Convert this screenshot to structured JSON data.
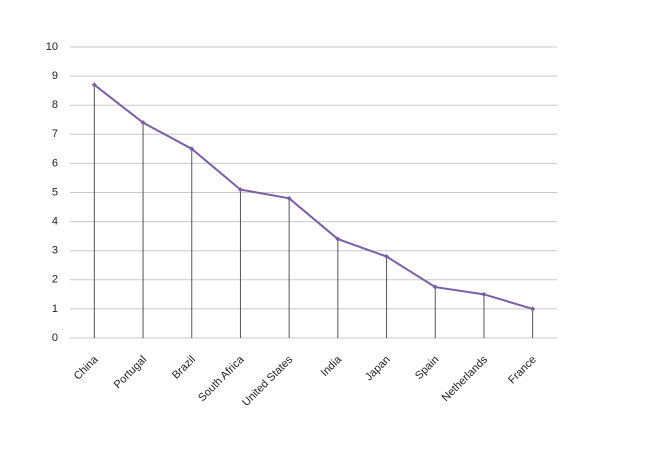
{
  "chart_data": {
    "type": "line",
    "categories": [
      "China",
      "Portugal",
      "Brazil",
      "South Africa",
      "United States",
      "India",
      "Japan",
      "Spain",
      "Netherlands",
      "France"
    ],
    "values": [
      8.7,
      7.4,
      6.5,
      5.1,
      4.8,
      3.4,
      2.8,
      1.75,
      1.5,
      1.0
    ],
    "color": "#7b5ea7",
    "ylim": [
      0,
      10
    ],
    "yticks": [
      0,
      1,
      2,
      3,
      4,
      5,
      6,
      7,
      8,
      9,
      10
    ],
    "grid": true,
    "drop_lines": true
  }
}
